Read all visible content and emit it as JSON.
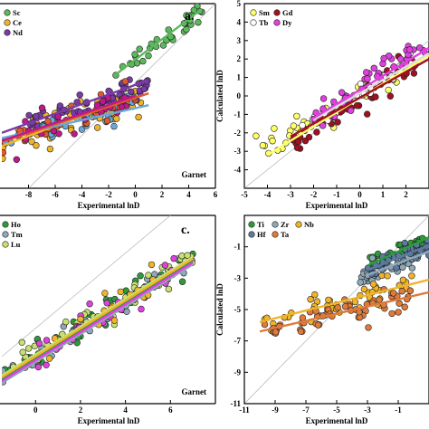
{
  "chart_data": [
    {
      "type": "scatter",
      "panel_letter": "a.",
      "corner_label": "Garnet",
      "xlabel": "Experimental lnD",
      "ylabel": "",
      "xlim": [
        -10,
        6
      ],
      "ylim": [
        -8,
        6
      ],
      "xticks": [
        -8,
        -6,
        -4,
        -2,
        0,
        2,
        4,
        6
      ],
      "yticks": [],
      "legend_position": "top-left",
      "series": [
        {
          "name": "Sc",
          "color": "#5cb85c",
          "trend": [
            [
              -1.5,
              0.6
            ],
            [
              5,
              5.6
            ]
          ],
          "cluster": {
            "xmin": -1.5,
            "xmax": 5,
            "slope": 0.75,
            "intercept": 1.8,
            "spread": 0.7,
            "n": 35
          }
        },
        {
          "name": "Ce",
          "color": "#f0b429",
          "trend": [
            [
              -10,
              -4.8
            ],
            [
              0,
              -1.0
            ]
          ],
          "cluster": {
            "xmin": -10,
            "xmax": 0.5,
            "slope": 0.35,
            "intercept": -1.2,
            "spread": 1.1,
            "n": 55
          }
        },
        {
          "name": "Nd",
          "color": "#7b3aa8",
          "trend": [
            [
              -10,
              -3.8
            ],
            [
              1,
              0.2
            ]
          ],
          "cluster": {
            "xmin": -8,
            "xmax": 1,
            "slope": 0.4,
            "intercept": -0.3,
            "spread": 0.8,
            "n": 60
          }
        },
        {
          "name": "",
          "color": "#6aa8d8",
          "trend": [
            [
              -10,
              -4.2
            ],
            [
              1,
              -1.7
            ]
          ],
          "cluster": {
            "xmin": -10,
            "xmax": 0,
            "slope": 0.25,
            "intercept": -1.8,
            "spread": 0.8,
            "n": 30
          }
        },
        {
          "name": "",
          "color": "#e05a2b",
          "trend": [
            [
              -10,
              -4.5
            ],
            [
              1,
              -0.8
            ]
          ],
          "cluster": {
            "xmin": -10,
            "xmax": 0,
            "slope": 0.33,
            "intercept": -1.2,
            "spread": 0.9,
            "n": 30
          }
        },
        {
          "name": "",
          "color": "#c0178c",
          "trend": [
            [
              -10,
              -4.4
            ],
            [
              0,
              -1.0
            ]
          ],
          "cluster": {
            "xmin": -9,
            "xmax": 0,
            "slope": 0.32,
            "intercept": -1.1,
            "spread": 0.9,
            "n": 25
          }
        }
      ]
    },
    {
      "type": "scatter",
      "panel_letter": "",
      "corner_label": "",
      "xlabel": "Experimental lnD",
      "ylabel": "Calculated lnD",
      "xlim": [
        -5,
        3
      ],
      "ylim": [
        -5,
        5
      ],
      "xticks": [
        -5,
        -4,
        -3,
        -2,
        -1,
        0,
        1,
        2
      ],
      "yticks": [
        -4,
        -3,
        -2,
        -1,
        0,
        1,
        2,
        3,
        4,
        5
      ],
      "legend_position": "top-left",
      "series": [
        {
          "name": "Sm",
          "color": "#ffff66",
          "trend": [
            [
              -4,
              -3.2
            ],
            [
              3,
              2.2
            ]
          ],
          "cluster": {
            "xmin": -4.5,
            "xmax": 2,
            "slope": 0.7,
            "intercept": 0.0,
            "spread": 0.6,
            "n": 40
          }
        },
        {
          "name": "Gd",
          "color": "#a01020",
          "trend": [
            [
              -3,
              -2.2
            ],
            [
              3,
              2.0
            ]
          ],
          "cluster": {
            "xmin": -3,
            "xmax": 2.5,
            "slope": 0.8,
            "intercept": -0.2,
            "spread": 0.6,
            "n": 55
          }
        },
        {
          "name": "Tb",
          "color": "#ffffff",
          "trend": [
            [
              -2,
              -1.3
            ],
            [
              3,
              2.3
            ]
          ],
          "cluster": {
            "xmin": -2.5,
            "xmax": 2.5,
            "slope": 0.8,
            "intercept": 0.1,
            "spread": 0.5,
            "n": 35
          }
        },
        {
          "name": "Dy",
          "color": "#e040e0",
          "trend": [
            [
              -2,
              -1.2
            ],
            [
              3,
              2.6
            ]
          ],
          "cluster": {
            "xmin": -2,
            "xmax": 3,
            "slope": 0.85,
            "intercept": 0.4,
            "spread": 0.6,
            "n": 45
          }
        }
      ]
    },
    {
      "type": "scatter",
      "panel_letter": "c.",
      "corner_label": "Garnet",
      "xlabel": "Experimental lnD",
      "ylabel": "",
      "xlim": [
        -1.5,
        8
      ],
      "ylim": [
        -4,
        6
      ],
      "xticks": [
        0,
        2,
        4,
        6
      ],
      "yticks": [],
      "legend_position": "top-left",
      "series": [
        {
          "name": "Ho",
          "color": "#2e9b3a",
          "trend": [
            [
              -1.5,
              -2.7
            ],
            [
              7,
              3.6
            ]
          ],
          "cluster": {
            "xmin": -1.5,
            "xmax": 7,
            "slope": 0.75,
            "intercept": -1.5,
            "spread": 0.6,
            "n": 60
          }
        },
        {
          "name": "Tm",
          "color": "#8fa8b8",
          "trend": [
            [
              -1.5,
              -2.9
            ],
            [
              7,
              3.4
            ]
          ],
          "cluster": {
            "xmin": -1.5,
            "xmax": 7,
            "slope": 0.75,
            "intercept": -1.6,
            "spread": 0.6,
            "n": 50
          }
        },
        {
          "name": "Lu",
          "color": "#c8e070",
          "trend": [
            [
              -1.5,
              -2.5
            ],
            [
              7,
              3.8
            ]
          ],
          "cluster": {
            "xmin": -1.5,
            "xmax": 7,
            "slope": 0.75,
            "intercept": -1.4,
            "spread": 0.6,
            "n": 50
          }
        },
        {
          "name": "",
          "color": "#e040e0",
          "trend": [
            [
              -1.5,
              -2.8
            ],
            [
              7,
              3.5
            ]
          ],
          "cluster": {
            "xmin": 0,
            "xmax": 6.5,
            "slope": 0.75,
            "intercept": -1.5,
            "spread": 0.7,
            "n": 30
          }
        },
        {
          "name": "",
          "color": "#f0b429",
          "trend": [
            [
              -1.5,
              -2.6
            ],
            [
              7,
              3.7
            ]
          ],
          "cluster": {
            "xmin": 0,
            "xmax": 6,
            "slope": 0.75,
            "intercept": -1.5,
            "spread": 0.7,
            "n": 25
          }
        }
      ]
    },
    {
      "type": "scatter",
      "panel_letter": "",
      "corner_label": "",
      "xlabel": "Experimental lnD",
      "ylabel": "Calculated lnD",
      "xlim": [
        -11,
        1
      ],
      "ylim": [
        -11,
        1
      ],
      "xticks": [
        -11,
        -9,
        -7,
        -5,
        -3,
        -1
      ],
      "yticks": [
        -11,
        -9,
        -7,
        -5,
        -3,
        -1
      ],
      "legend_position": "top-left",
      "series": [
        {
          "name": "Ti",
          "color": "#2e9b3a",
          "trend": [
            [
              -3,
              -2.2
            ],
            [
              1,
              -0.4
            ]
          ],
          "cluster": {
            "xmin": -3,
            "xmax": 1,
            "slope": 0.45,
            "intercept": -0.9,
            "spread": 0.5,
            "n": 40
          }
        },
        {
          "name": "Zr",
          "color": "#8fa8b8",
          "trend": [
            [
              -3,
              -2.8
            ],
            [
              1,
              -1.3
            ]
          ],
          "cluster": {
            "xmin": -3.5,
            "xmax": 1,
            "slope": 0.4,
            "intercept": -1.6,
            "spread": 0.5,
            "n": 60
          }
        },
        {
          "name": "Nb",
          "color": "#f0b429",
          "trend": [
            [
              -10,
              -5.8
            ],
            [
              1,
              -3.1
            ]
          ],
          "cluster": {
            "xmin": -10,
            "xmax": 0,
            "slope": 0.25,
            "intercept": -3.3,
            "spread": 0.7,
            "n": 45
          }
        },
        {
          "name": "Hf",
          "color": "#5a7aa0",
          "trend": [
            [
              -3,
              -2.5
            ],
            [
              1,
              -0.9
            ]
          ],
          "cluster": {
            "xmin": -3,
            "xmax": 1,
            "slope": 0.4,
            "intercept": -1.3,
            "spread": 0.5,
            "n": 50
          }
        },
        {
          "name": "Ta",
          "color": "#e07a3a",
          "trend": [
            [
              -10,
              -6.4
            ],
            [
              1,
              -3.9
            ]
          ],
          "cluster": {
            "xmin": -10,
            "xmax": 0,
            "slope": 0.23,
            "intercept": -4.1,
            "spread": 0.8,
            "n": 60
          }
        }
      ]
    }
  ]
}
